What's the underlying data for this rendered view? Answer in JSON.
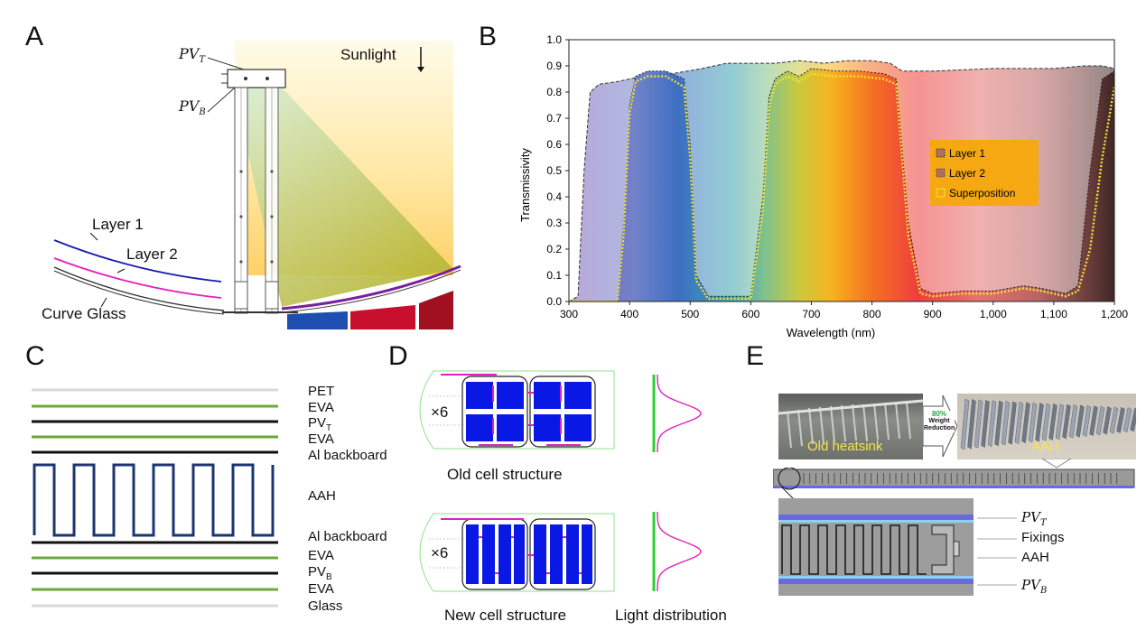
{
  "panels": {
    "a": "A",
    "b": "B",
    "c": "C",
    "d": "D",
    "e": "E"
  },
  "panel_a": {
    "pv_top": "PV",
    "pv_top_sub": "T",
    "pv_bottom": "PV",
    "pv_bottom_sub": "B",
    "sunlight": "Sunlight",
    "layer1": "Layer 1",
    "layer2": "Layer 2",
    "curve_glass": "Curve Glass"
  },
  "chart_data": {
    "type": "area",
    "xlabel": "Wavelength (nm)",
    "ylabel": "Transmissivity",
    "xlim": [
      300,
      1200
    ],
    "ylim": [
      0,
      1.0
    ],
    "x_ticks": [
      "300",
      "400",
      "500",
      "600",
      "700",
      "800",
      "900",
      "1,000",
      "1,100",
      "1,200"
    ],
    "y_ticks": [
      "0.0",
      "0.1",
      "0.2",
      "0.3",
      "0.4",
      "0.5",
      "0.6",
      "0.7",
      "0.8",
      "0.9",
      "1.0"
    ],
    "legend_position": "right",
    "series": [
      {
        "name": "Layer 1",
        "x": [
          300,
          315,
          325,
          335,
          350,
          380,
          420,
          470,
          520,
          560,
          600,
          640,
          680,
          720,
          760,
          800,
          830,
          850,
          900,
          1000,
          1100,
          1150,
          1180,
          1200
        ],
        "y": [
          0.0,
          0.02,
          0.5,
          0.8,
          0.83,
          0.84,
          0.86,
          0.87,
          0.89,
          0.91,
          0.91,
          0.91,
          0.92,
          0.91,
          0.92,
          0.92,
          0.91,
          0.88,
          0.88,
          0.89,
          0.89,
          0.9,
          0.9,
          0.89
        ]
      },
      {
        "name": "Layer 2",
        "x": [
          300,
          380,
          390,
          400,
          410,
          430,
          460,
          490,
          500,
          510,
          530,
          560,
          600,
          620,
          630,
          640,
          660,
          680,
          700,
          740,
          780,
          820,
          840,
          860,
          880,
          900,
          950,
          1000,
          1050,
          1080,
          1120,
          1140,
          1160,
          1180,
          1200
        ],
        "y": [
          0.0,
          0.0,
          0.3,
          0.75,
          0.86,
          0.88,
          0.88,
          0.85,
          0.6,
          0.1,
          0.02,
          0.02,
          0.02,
          0.4,
          0.78,
          0.85,
          0.88,
          0.86,
          0.89,
          0.88,
          0.88,
          0.87,
          0.85,
          0.3,
          0.05,
          0.03,
          0.04,
          0.04,
          0.06,
          0.05,
          0.03,
          0.06,
          0.5,
          0.85,
          0.88
        ]
      },
      {
        "name": "Superposition",
        "x": [
          300,
          380,
          390,
          400,
          410,
          430,
          460,
          490,
          500,
          510,
          530,
          560,
          600,
          620,
          630,
          640,
          660,
          680,
          700,
          740,
          780,
          820,
          840,
          860,
          880,
          900,
          950,
          1000,
          1050,
          1080,
          1120,
          1140,
          1160,
          1180,
          1200
        ],
        "y": [
          0.0,
          0.0,
          0.25,
          0.72,
          0.84,
          0.86,
          0.86,
          0.82,
          0.55,
          0.08,
          0.01,
          0.01,
          0.01,
          0.35,
          0.74,
          0.83,
          0.86,
          0.84,
          0.87,
          0.86,
          0.86,
          0.85,
          0.83,
          0.25,
          0.03,
          0.02,
          0.03,
          0.03,
          0.05,
          0.04,
          0.02,
          0.04,
          0.2,
          0.55,
          0.82
        ]
      }
    ]
  },
  "panel_c": {
    "layers": [
      "PET",
      "EVA",
      "PV",
      "EVA",
      "Al backboard",
      "AAH",
      "Al backboard",
      "EVA",
      "PV",
      "EVA",
      "Glass"
    ],
    "pv_t_sub": "T",
    "pv_b_sub": "B"
  },
  "panel_d": {
    "multiplier_top": "×6",
    "multiplier_bottom": "×6",
    "old_caption": "Old cell structure",
    "new_caption": "New cell structure",
    "light_caption": "Light distribution"
  },
  "panel_e": {
    "old_heatsink": "Old heatsink",
    "aah_photo": "AAH",
    "badge_pct": "80%",
    "badge_line1": "Weight",
    "badge_line2": "Reduction",
    "pv_t": "PV",
    "pv_t_sub": "T",
    "fixings": "Fixings",
    "aah": "AAH",
    "pv_b": "PV",
    "pv_b_sub": "B"
  },
  "colors": {
    "layer1": "#1a1ab0",
    "layer2": "#e020c0",
    "eva": "#6fa83a",
    "aah": "#1c3470",
    "legend_bg": "#f5a811",
    "superposition": "#f2e03a",
    "cell_blue": "#0a18e6"
  }
}
